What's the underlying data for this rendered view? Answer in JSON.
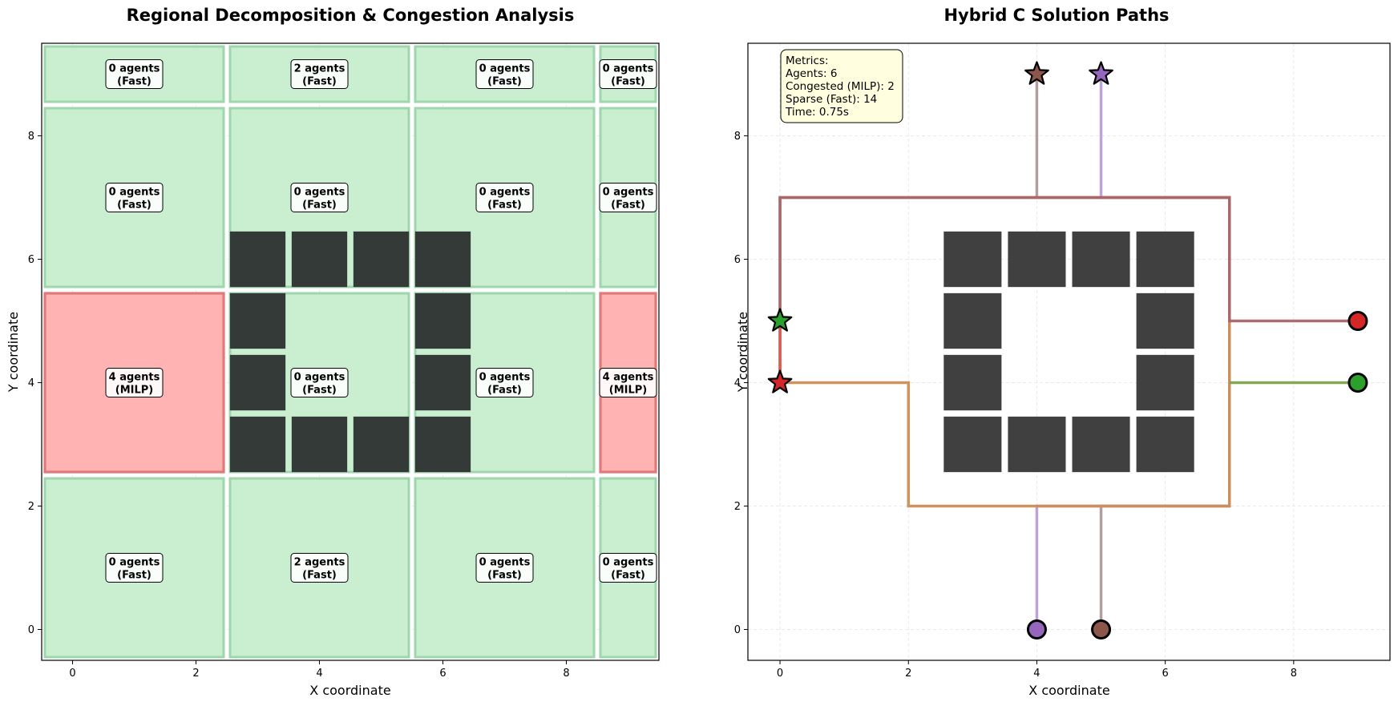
{
  "chart_data": [
    {
      "type": "heatmap",
      "title": "Regional Decomposition & Congestion Analysis",
      "xlabel": "X coordinate",
      "ylabel": "Y coordinate",
      "xlim": [
        -0.5,
        9.5
      ],
      "ylim": [
        -0.5,
        9.5
      ],
      "xticks": [
        0,
        2,
        4,
        6,
        8
      ],
      "yticks": [
        0,
        2,
        4,
        6,
        8
      ],
      "grid": true,
      "colors": {
        "fast_fill": "#c9efd0",
        "fast_edge": "#9fd6ac",
        "milp_fill": "#ffb3b3",
        "milp_edge": "#e07a7a",
        "obstacle": "#333333"
      },
      "regions": [
        {
          "x0": -0.5,
          "x1": 2.5,
          "y0": 8.5,
          "y1": 9.5,
          "line1": "0 agents",
          "line2": "(Fast)",
          "mode": "fast"
        },
        {
          "x0": 2.5,
          "x1": 5.5,
          "y0": 8.5,
          "y1": 9.5,
          "line1": "2 agents",
          "line2": "(Fast)",
          "mode": "fast"
        },
        {
          "x0": 5.5,
          "x1": 8.5,
          "y0": 8.5,
          "y1": 9.5,
          "line1": "0 agents",
          "line2": "(Fast)",
          "mode": "fast"
        },
        {
          "x0": 8.5,
          "x1": 9.5,
          "y0": 8.5,
          "y1": 9.5,
          "line1": "0 agents",
          "line2": "(Fast)",
          "mode": "fast"
        },
        {
          "x0": -0.5,
          "x1": 2.5,
          "y0": 5.5,
          "y1": 8.5,
          "line1": "0 agents",
          "line2": "(Fast)",
          "mode": "fast"
        },
        {
          "x0": 2.5,
          "x1": 5.5,
          "y0": 5.5,
          "y1": 8.5,
          "line1": "0 agents",
          "line2": "(Fast)",
          "mode": "fast"
        },
        {
          "x0": 5.5,
          "x1": 8.5,
          "y0": 5.5,
          "y1": 8.5,
          "line1": "0 agents",
          "line2": "(Fast)",
          "mode": "fast"
        },
        {
          "x0": 8.5,
          "x1": 9.5,
          "y0": 5.5,
          "y1": 8.5,
          "line1": "0 agents",
          "line2": "(Fast)",
          "mode": "fast"
        },
        {
          "x0": -0.5,
          "x1": 2.5,
          "y0": 2.5,
          "y1": 5.5,
          "line1": "4 agents",
          "line2": "(MILP)",
          "mode": "milp"
        },
        {
          "x0": 2.5,
          "x1": 5.5,
          "y0": 2.5,
          "y1": 5.5,
          "line1": "0 agents",
          "line2": "(Fast)",
          "mode": "fast"
        },
        {
          "x0": 5.5,
          "x1": 8.5,
          "y0": 2.5,
          "y1": 5.5,
          "line1": "0 agents",
          "line2": "(Fast)",
          "mode": "fast"
        },
        {
          "x0": 8.5,
          "x1": 9.5,
          "y0": 2.5,
          "y1": 5.5,
          "line1": "4 agents",
          "line2": "(MILP)",
          "mode": "milp"
        },
        {
          "x0": -0.5,
          "x1": 2.5,
          "y0": -0.5,
          "y1": 2.5,
          "line1": "0 agents",
          "line2": "(Fast)",
          "mode": "fast"
        },
        {
          "x0": 2.5,
          "x1": 5.5,
          "y0": -0.5,
          "y1": 2.5,
          "line1": "2 agents",
          "line2": "(Fast)",
          "mode": "fast"
        },
        {
          "x0": 5.5,
          "x1": 8.5,
          "y0": -0.5,
          "y1": 2.5,
          "line1": "0 agents",
          "line2": "(Fast)",
          "mode": "fast"
        },
        {
          "x0": 8.5,
          "x1": 9.5,
          "y0": -0.5,
          "y1": 2.5,
          "line1": "0 agents",
          "line2": "(Fast)",
          "mode": "fast"
        }
      ],
      "obstacles": [
        [
          3,
          6
        ],
        [
          4,
          6
        ],
        [
          5,
          6
        ],
        [
          6,
          6
        ],
        [
          3,
          5
        ],
        [
          6,
          5
        ],
        [
          3,
          4
        ],
        [
          6,
          4
        ],
        [
          3,
          3
        ],
        [
          4,
          3
        ],
        [
          5,
          3
        ],
        [
          6,
          3
        ]
      ]
    },
    {
      "type": "line",
      "title": "Hybrid C Solution Paths",
      "xlabel": "X coordinate",
      "ylabel": "Y coordinate",
      "xlim": [
        -0.5,
        9.5
      ],
      "ylim": [
        -0.5,
        9.5
      ],
      "xticks": [
        0,
        2,
        4,
        6,
        8
      ],
      "yticks": [
        0,
        2,
        4,
        6,
        8
      ],
      "grid": true,
      "obstacles": [
        [
          3,
          6
        ],
        [
          4,
          6
        ],
        [
          5,
          6
        ],
        [
          6,
          6
        ],
        [
          3,
          5
        ],
        [
          6,
          5
        ],
        [
          3,
          4
        ],
        [
          6,
          4
        ],
        [
          3,
          3
        ],
        [
          4,
          3
        ],
        [
          5,
          3
        ],
        [
          6,
          3
        ]
      ],
      "metrics": [
        "Metrics:",
        "Agents: 6",
        "Congested (MILP): 2",
        "Sparse (Fast): 14",
        "Time: 0.75s"
      ],
      "paths": [
        {
          "color": "#ad9a99",
          "points": [
            [
              5,
              0
            ],
            [
              5,
              2
            ],
            [
              7,
              2
            ],
            [
              7,
              7
            ],
            [
              4,
              7
            ],
            [
              4,
              9
            ]
          ]
        },
        {
          "color": "#b99ed6",
          "points": [
            [
              4,
              0
            ],
            [
              4,
              2
            ],
            [
              7,
              2
            ],
            [
              7,
              7
            ],
            [
              5,
              7
            ],
            [
              5,
              9
            ]
          ]
        },
        {
          "color": "#cc8e54",
          "points": [
            [
              0,
              4
            ],
            [
              2,
              4
            ],
            [
              2,
              2
            ],
            [
              7,
              2
            ],
            [
              7,
              7
            ],
            [
              0,
              7
            ],
            [
              0,
              5
            ]
          ]
        },
        {
          "color": "#a8646c",
          "points": [
            [
              9,
              5
            ],
            [
              7,
              5
            ],
            [
              7,
              7
            ],
            [
              0,
              7
            ],
            [
              0,
              4
            ]
          ]
        },
        {
          "color": "#7fa34a",
          "points": [
            [
              9,
              4
            ],
            [
              7,
              4
            ]
          ]
        },
        {
          "color": "#e05a4a",
          "points": [
            [
              0,
              5
            ],
            [
              0,
              4
            ]
          ]
        }
      ],
      "starts": [
        {
          "x": 4,
          "y": 0,
          "color": "#9467bd"
        },
        {
          "x": 5,
          "y": 0,
          "color": "#8c564b"
        },
        {
          "x": 9,
          "y": 5,
          "color": "#d62728"
        },
        {
          "x": 9,
          "y": 4,
          "color": "#2ca02c"
        }
      ],
      "goals": [
        {
          "x": 4,
          "y": 9,
          "color": "#8c564b"
        },
        {
          "x": 5,
          "y": 9,
          "color": "#9467bd"
        },
        {
          "x": 0,
          "y": 5,
          "color": "#2ca02c"
        },
        {
          "x": 0,
          "y": 4,
          "color": "#d62728"
        }
      ]
    }
  ]
}
